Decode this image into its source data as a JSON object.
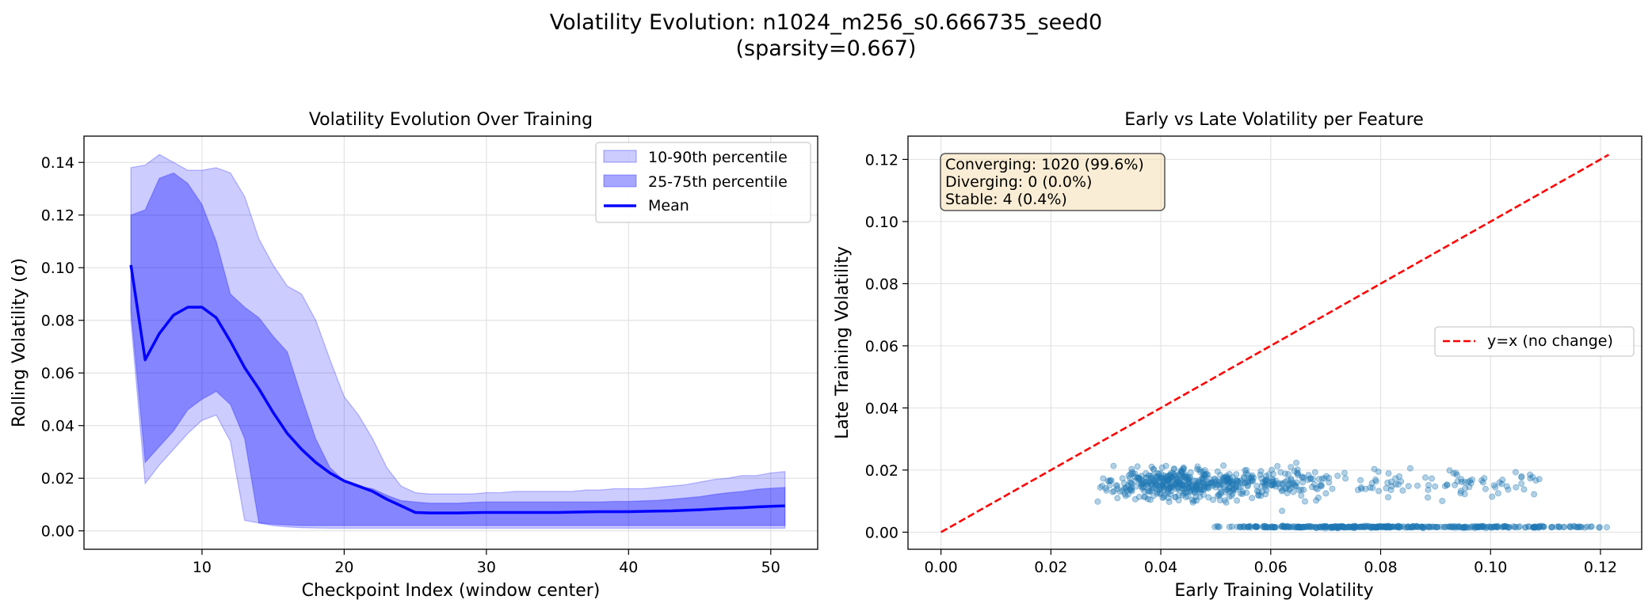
{
  "figure": {
    "suptitle_line1": "Volatility Evolution: n1024_m256_s0.666735_seed0",
    "suptitle_line2": "(sparsity=0.667)"
  },
  "chart_data": [
    {
      "type": "area",
      "title": "Volatility Evolution Over Training",
      "xlabel": "Checkpoint Index (window center)",
      "ylabel": "Rolling Volatility (σ)",
      "xlim": [
        1.7,
        53.3
      ],
      "ylim": [
        -0.007,
        0.15
      ],
      "xticks": [
        10,
        20,
        30,
        40,
        50
      ],
      "yticks": [
        0.0,
        0.02,
        0.04,
        0.06,
        0.08,
        0.1,
        0.12,
        0.14
      ],
      "ytick_labels": [
        "0.00",
        "0.02",
        "0.04",
        "0.06",
        "0.08",
        "0.10",
        "0.12",
        "0.14"
      ],
      "grid": true,
      "legend_position": "upper right",
      "x": [
        5,
        6,
        7,
        8,
        9,
        10,
        11,
        12,
        13,
        14,
        15,
        16,
        17,
        18,
        19,
        20,
        21,
        22,
        23,
        24,
        25,
        26,
        27,
        28,
        29,
        30,
        31,
        32,
        33,
        34,
        35,
        36,
        37,
        38,
        39,
        40,
        41,
        42,
        43,
        44,
        45,
        46,
        47,
        48,
        49,
        50,
        51
      ],
      "series": [
        {
          "name": "10-90th percentile",
          "kind": "band",
          "color": "#0000ff",
          "fill_opacity": 0.2,
          "lower": [
            0.08,
            0.018,
            0.025,
            0.031,
            0.037,
            0.042,
            0.044,
            0.034,
            0.004,
            0.003,
            0.002,
            0.0015,
            0.0012,
            0.0011,
            0.001,
            0.001,
            0.001,
            0.001,
            0.001,
            0.001,
            0.001,
            0.001,
            0.001,
            0.001,
            0.001,
            0.001,
            0.001,
            0.001,
            0.001,
            0.001,
            0.001,
            0.001,
            0.001,
            0.001,
            0.001,
            0.001,
            0.001,
            0.001,
            0.001,
            0.001,
            0.001,
            0.001,
            0.001,
            0.001,
            0.001,
            0.001,
            0.001
          ],
          "upper": [
            0.138,
            0.139,
            0.143,
            0.14,
            0.137,
            0.137,
            0.138,
            0.136,
            0.127,
            0.111,
            0.101,
            0.093,
            0.09,
            0.08,
            0.065,
            0.051,
            0.044,
            0.035,
            0.024,
            0.017,
            0.0145,
            0.014,
            0.014,
            0.014,
            0.014,
            0.0145,
            0.0145,
            0.015,
            0.015,
            0.015,
            0.015,
            0.015,
            0.0155,
            0.0155,
            0.016,
            0.016,
            0.016,
            0.0165,
            0.017,
            0.0175,
            0.0185,
            0.0195,
            0.02,
            0.021,
            0.021,
            0.022,
            0.0225
          ]
        },
        {
          "name": "25-75th percentile",
          "kind": "band",
          "color": "#0000ff",
          "fill_opacity": 0.35,
          "lower": [
            0.084,
            0.026,
            0.032,
            0.038,
            0.046,
            0.05,
            0.053,
            0.048,
            0.035,
            0.003,
            0.0025,
            0.0022,
            0.002,
            0.002,
            0.002,
            0.002,
            0.002,
            0.002,
            0.002,
            0.002,
            0.002,
            0.002,
            0.002,
            0.002,
            0.002,
            0.002,
            0.002,
            0.002,
            0.002,
            0.002,
            0.002,
            0.002,
            0.002,
            0.002,
            0.002,
            0.002,
            0.002,
            0.002,
            0.002,
            0.002,
            0.002,
            0.002,
            0.002,
            0.002,
            0.002,
            0.002,
            0.002
          ],
          "upper": [
            0.12,
            0.122,
            0.134,
            0.136,
            0.132,
            0.124,
            0.11,
            0.09,
            0.085,
            0.081,
            0.074,
            0.068,
            0.051,
            0.035,
            0.024,
            0.019,
            0.017,
            0.016,
            0.0135,
            0.0115,
            0.011,
            0.0105,
            0.0105,
            0.0105,
            0.0108,
            0.011,
            0.011,
            0.011,
            0.011,
            0.011,
            0.011,
            0.011,
            0.011,
            0.011,
            0.0112,
            0.0112,
            0.0114,
            0.0116,
            0.012,
            0.0125,
            0.013,
            0.0138,
            0.0145,
            0.015,
            0.0158,
            0.0162,
            0.0165
          ]
        },
        {
          "name": "Mean",
          "kind": "line",
          "color": "#0000ff",
          "values": [
            0.101,
            0.065,
            0.075,
            0.082,
            0.085,
            0.085,
            0.081,
            0.072,
            0.062,
            0.054,
            0.045,
            0.037,
            0.031,
            0.026,
            0.022,
            0.019,
            0.017,
            0.015,
            0.012,
            0.0095,
            0.007,
            0.0068,
            0.0068,
            0.0068,
            0.0069,
            0.007,
            0.007,
            0.007,
            0.007,
            0.007,
            0.007,
            0.0071,
            0.0072,
            0.0073,
            0.0073,
            0.0073,
            0.0074,
            0.0075,
            0.0076,
            0.0078,
            0.008,
            0.0083,
            0.0086,
            0.0088,
            0.0091,
            0.0093,
            0.0095
          ]
        }
      ]
    },
    {
      "type": "scatter",
      "title": "Early vs Late Volatility per Feature",
      "xlabel": "Early Training Volatility",
      "ylabel": "Late Training Volatility",
      "xlim": [
        -0.006,
        0.1275
      ],
      "ylim": [
        -0.0055,
        0.1275
      ],
      "xticks": [
        0.0,
        0.02,
        0.04,
        0.06,
        0.08,
        0.1,
        0.12
      ],
      "xtick_labels": [
        "0.00",
        "0.02",
        "0.04",
        "0.06",
        "0.08",
        "0.10",
        "0.12"
      ],
      "yticks": [
        0.0,
        0.02,
        0.04,
        0.06,
        0.08,
        0.1,
        0.12
      ],
      "ytick_labels": [
        "0.00",
        "0.02",
        "0.04",
        "0.06",
        "0.08",
        "0.10",
        "0.12"
      ],
      "grid": true,
      "legend_position": "center right",
      "reference_line": {
        "name": "y=x (no change)",
        "color": "#ff0000",
        "from": 0.0,
        "to": 0.1215
      },
      "point_color": "#1f77b4",
      "point_count": 1024,
      "clusters": [
        {
          "n": 620,
          "x_range": [
            0.028,
            0.075
          ],
          "x_mode": 0.04,
          "y_mean": 0.0155,
          "y_sd": 0.0034,
          "tail_x": [
            0.075,
            0.11
          ]
        },
        {
          "n": 404,
          "x_range": [
            0.048,
            0.122
          ],
          "x_mode": 0.068,
          "y_mean": 0.0017,
          "y_sd": 0.0002,
          "tail_x": [
            0.095,
            0.122
          ]
        }
      ],
      "annotation": [
        "Converging: 1020 (99.6%)",
        "Diverging: 0 (0.0%)",
        "Stable: 4 (0.4%)"
      ]
    }
  ]
}
